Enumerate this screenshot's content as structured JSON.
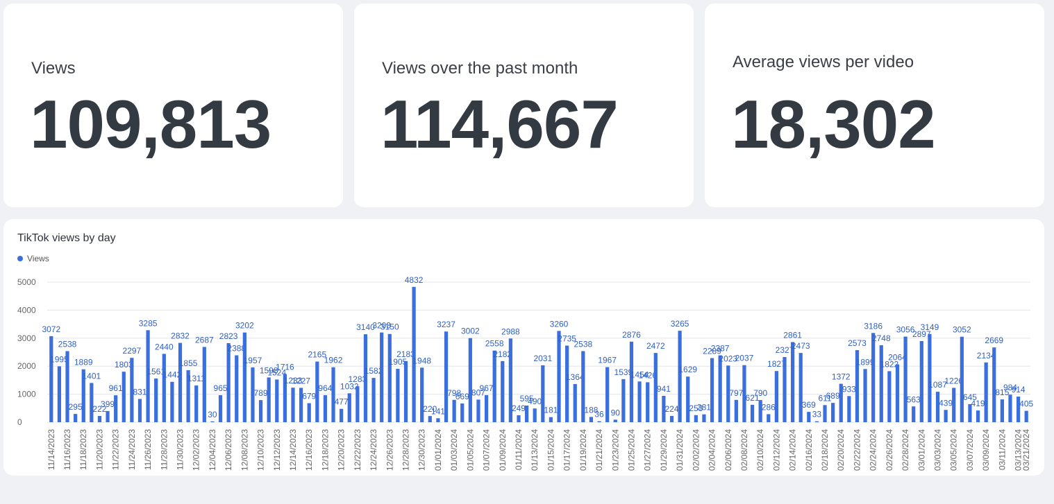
{
  "kpis": [
    {
      "title": "Views",
      "value": "109,813"
    },
    {
      "title": "Views over the past month",
      "value": "114,667"
    },
    {
      "title": "Average views per video",
      "value": "18,302"
    }
  ],
  "chart_data": {
    "type": "bar",
    "title": "TikTok views by day",
    "legend": "top-left",
    "ylim": [
      0,
      5000
    ],
    "yticks": [
      0,
      1000,
      2000,
      3000,
      4000,
      5000
    ],
    "grid": true,
    "color": "#3b6fdd",
    "x_tick_labels": [
      "11/14/2023",
      "11/16/2023",
      "11/18/2023",
      "11/20/2023",
      "11/22/2023",
      "11/24/2023",
      "11/26/2023",
      "11/28/2023",
      "11/30/2023",
      "12/02/2023",
      "12/04/2023",
      "12/06/2023",
      "12/08/2023",
      "12/10/2023",
      "12/12/2023",
      "12/14/2023",
      "12/16/2023",
      "12/18/2023",
      "12/20/2023",
      "12/22/2023",
      "12/24/2023",
      "12/26/2023",
      "12/28/2023",
      "12/30/2023",
      "01/01/2024",
      "01/03/2024",
      "01/05/2024",
      "01/07/2024",
      "01/09/2024",
      "01/11/2024",
      "01/13/2024",
      "01/15/2024",
      "01/17/2024",
      "01/19/2024",
      "01/21/2024",
      "01/23/2024",
      "01/25/2024",
      "01/27/2024",
      "01/29/2024",
      "01/31/2024",
      "02/02/2024",
      "02/04/2024",
      "02/06/2024",
      "02/08/2024",
      "02/10/2024",
      "02/12/2024",
      "02/14/2024",
      "02/16/2024",
      "02/18/2024",
      "02/20/2024",
      "02/22/2024",
      "02/24/2024",
      "02/26/2024",
      "02/28/2024",
      "03/01/2024",
      "03/03/2024",
      "03/05/2024",
      "03/07/2024",
      "03/09/2024",
      "03/11/2024",
      "03/13/2024",
      "03/21/2024"
    ],
    "series": [
      {
        "name": "Views",
        "values": [
          3072,
          1995,
          2538,
          295,
          1889,
          1401,
          222,
          399,
          961,
          1803,
          2297,
          831,
          3285,
          1561,
          2440,
          1442,
          2832,
          1855,
          1311,
          2687,
          30,
          965,
          2823,
          2388,
          3202,
          1957,
          789,
          1598,
          1524,
          1716,
          1233,
          1227,
          679,
          2165,
          964,
          1962,
          477,
          1032,
          1283,
          3140,
          1582,
          3203,
          3150,
          1905,
          2183,
          4832,
          1948,
          220,
          141,
          3237,
          798,
          669,
          3002,
          807,
          967,
          2558,
          2182,
          2988,
          249,
          595,
          490,
          2031,
          181,
          3260,
          2735,
          1364,
          2538,
          188,
          36,
          1967,
          90,
          1539,
          2876,
          1454,
          1426,
          2472,
          941,
          224,
          3265,
          1629,
          253,
          281,
          2289,
          2387,
          2023,
          797,
          2037,
          621,
          790,
          286,
          1827,
          2327,
          2861,
          2473,
          369,
          33,
          611,
          689,
          1372,
          933,
          2573,
          1899,
          3186,
          2748,
          1822,
          2064,
          3056,
          563,
          2897,
          3149,
          1087,
          439,
          1226,
          3052,
          645,
          419,
          2134,
          2669,
          815,
          984,
          914,
          405
        ]
      }
    ]
  }
}
